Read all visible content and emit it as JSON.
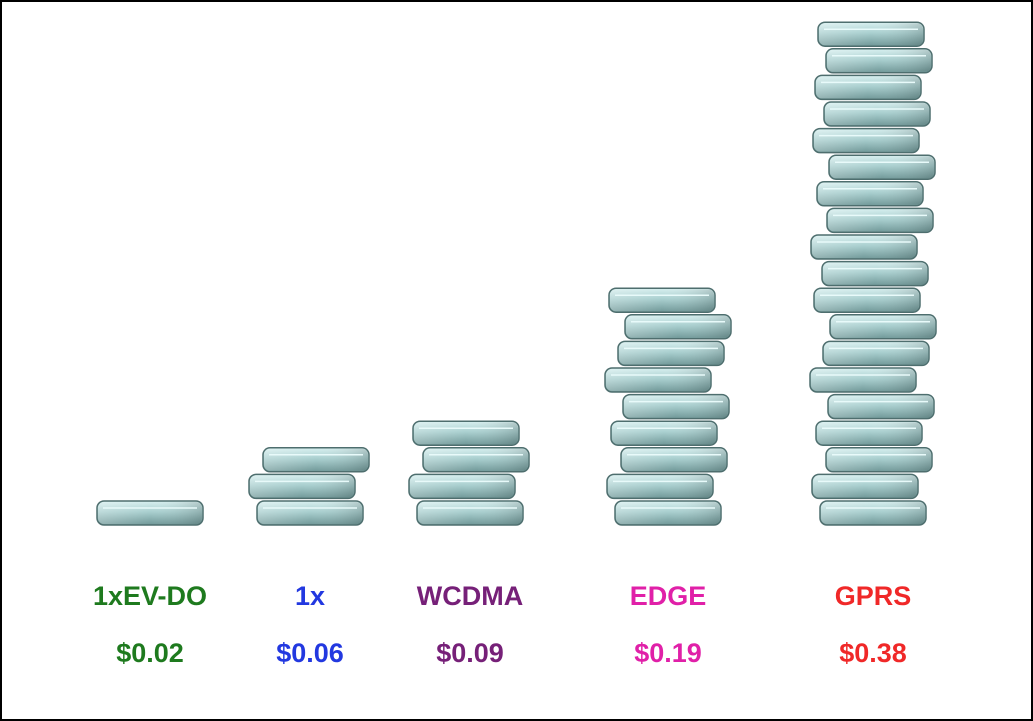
{
  "chart_data": {
    "type": "coin-stack",
    "categories": [
      "1xEV-DO",
      "1x",
      "WCDMA",
      "EDGE",
      "GPRS"
    ],
    "values": [
      0.02,
      0.06,
      0.09,
      0.19,
      0.38
    ],
    "value_labels": [
      "$0.02",
      "$0.06",
      "$0.09",
      "$0.19",
      "$0.38"
    ],
    "colors": [
      "#1e7a1e",
      "#2238e0",
      "#762078",
      "#e020a8",
      "#f02828"
    ]
  }
}
